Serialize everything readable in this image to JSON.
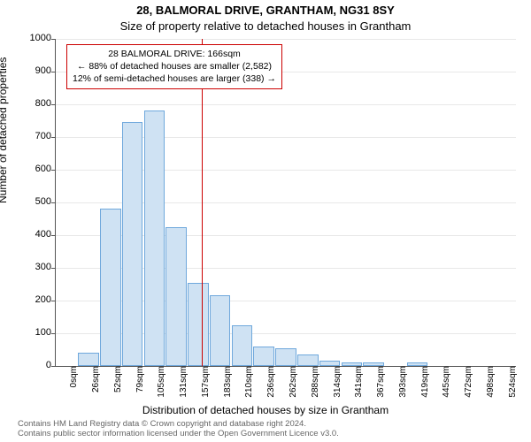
{
  "header": {
    "address": "28, BALMORAL DRIVE, GRANTHAM, NG31 8SY",
    "subtitle": "Size of property relative to detached houses in Grantham"
  },
  "chart": {
    "type": "histogram",
    "ylabel": "Number of detached properties",
    "xlabel": "Distribution of detached houses by size in Grantham",
    "ylim": [
      0,
      1000
    ],
    "ytick_step": 100,
    "bar_fill": "#cfe2f3",
    "bar_stroke": "#6fa8dc",
    "grid_color": "#e8e8e8",
    "background": "#ffffff",
    "bar_width_pct": 0.95,
    "categories": [
      "0sqm",
      "26sqm",
      "52sqm",
      "79sqm",
      "105sqm",
      "131sqm",
      "157sqm",
      "183sqm",
      "210sqm",
      "236sqm",
      "262sqm",
      "288sqm",
      "314sqm",
      "341sqm",
      "367sqm",
      "393sqm",
      "419sqm",
      "445sqm",
      "472sqm",
      "498sqm",
      "524sqm"
    ],
    "values": [
      0,
      40,
      480,
      745,
      780,
      425,
      255,
      215,
      125,
      60,
      55,
      35,
      15,
      10,
      12,
      0,
      10,
      0,
      0,
      0,
      0
    ],
    "reference_value_sqm": 166,
    "reference_line_color": "#cc0000",
    "annotation": {
      "line1": "28 BALMORAL DRIVE: 166sqm",
      "line2": "← 88% of detached houses are smaller (2,582)",
      "line3": "12% of semi-detached houses are larger (338) →",
      "border_color": "#cc0000"
    }
  },
  "footer": {
    "line1": "Contains HM Land Registry data © Crown copyright and database right 2024.",
    "line2": "Contains public sector information licensed under the Open Government Licence v3.0."
  }
}
